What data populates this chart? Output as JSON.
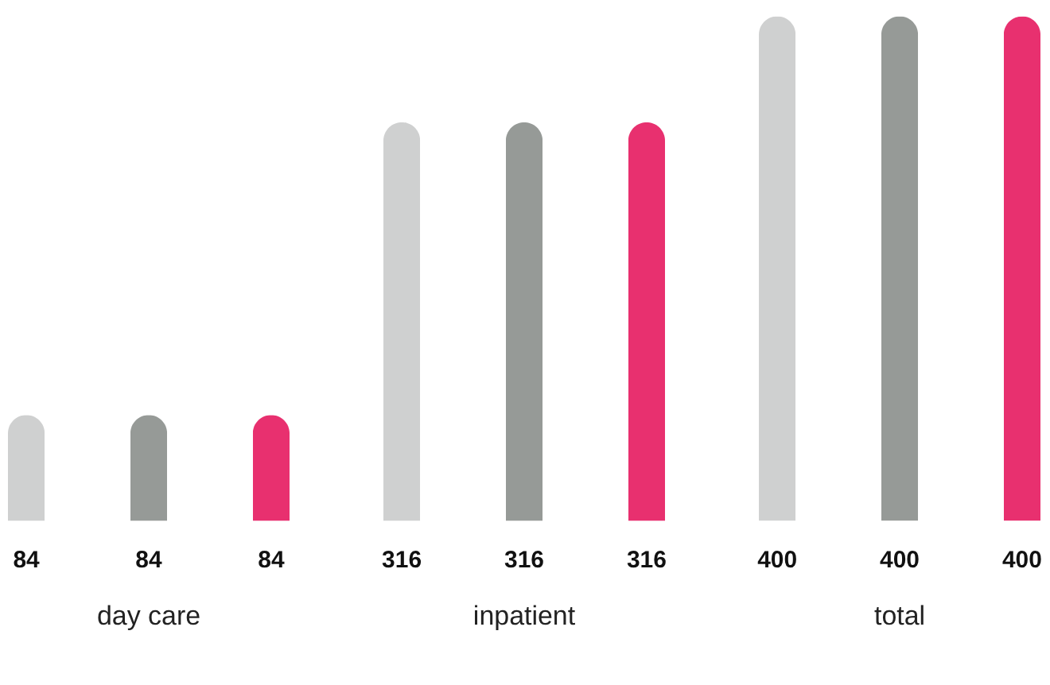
{
  "chart_data": {
    "type": "bar",
    "categories": [
      "day care",
      "inpatient",
      "total"
    ],
    "series": [
      {
        "color": "#cfd0d0",
        "values": [
          84,
          316,
          400
        ]
      },
      {
        "color": "#969a97",
        "values": [
          84,
          316,
          400
        ]
      },
      {
        "color": "#e8306f",
        "values": [
          84,
          316,
          400
        ]
      }
    ],
    "data_labels": true
  }
}
